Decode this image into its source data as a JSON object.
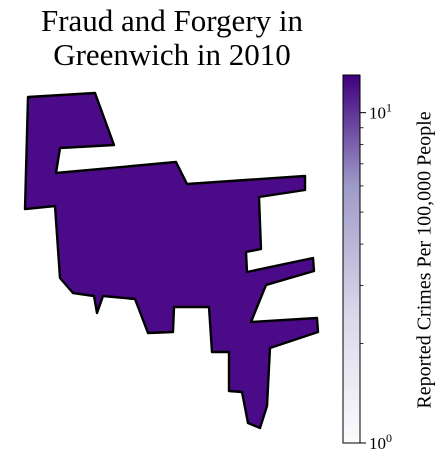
{
  "title": "Fraud and Forgery in Greenwich in 2010",
  "region_color": "#4b0a87",
  "colorbar": {
    "label": "Reported Crimes Per 100,000 People",
    "scale": "log",
    "range": [
      1,
      13
    ],
    "color_low": "#fcfbfd",
    "color_high": "#3f007d",
    "major_ticks": [
      {
        "value": 1,
        "base": "10",
        "exp": "0"
      },
      {
        "value": 10,
        "base": "10",
        "exp": "1"
      }
    ],
    "minor_ticks": [
      2,
      3,
      4,
      5,
      6,
      7,
      8,
      9
    ]
  }
}
